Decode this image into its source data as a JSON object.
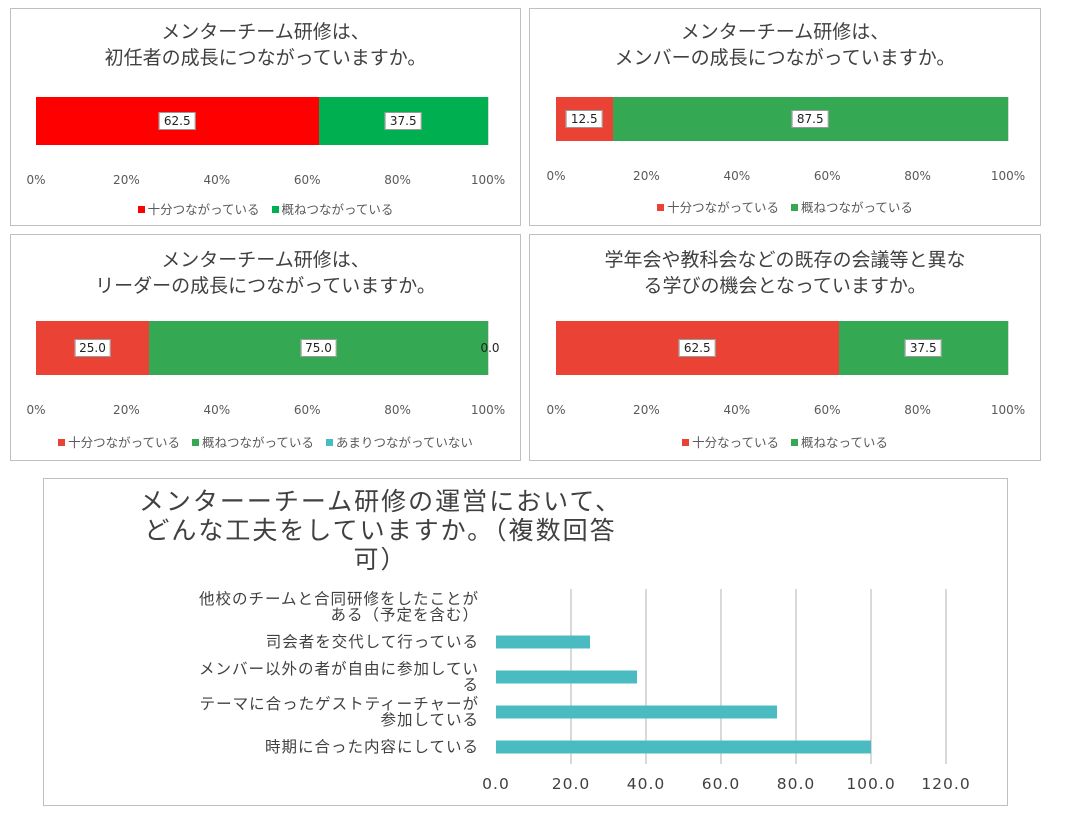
{
  "colors": {
    "red_bright": "#ff0000",
    "green_bright": "#00b050",
    "red": "#ea4335",
    "green": "#34a853",
    "cyan": "#46bdc6",
    "teal_bar": "#4bbbc2"
  },
  "chart_data": [
    {
      "type": "bar",
      "stacked": true,
      "orientation": "horizontal",
      "title": "メンターチーム研修は、\n初任者の成長につながっていますか。",
      "series": [
        {
          "name": "十分つながっている",
          "values": [
            62.5
          ],
          "color": "#ff0000",
          "label": "62.5"
        },
        {
          "name": "概ねつながっている",
          "values": [
            37.5
          ],
          "color": "#00b050",
          "label": "37.5"
        }
      ],
      "xlim": [
        0,
        100
      ],
      "xticks": [
        "0%",
        "20%",
        "40%",
        "60%",
        "80%",
        "100%"
      ],
      "legend": "bottom"
    },
    {
      "type": "bar",
      "stacked": true,
      "orientation": "horizontal",
      "title": "メンターチーム研修は、\nメンバーの成長につながっていますか。",
      "series": [
        {
          "name": "十分つながっている",
          "values": [
            12.5
          ],
          "color": "#ea4335",
          "label": "12.5"
        },
        {
          "name": "概ねつながっている",
          "values": [
            87.5
          ],
          "color": "#34a853",
          "label": "87.5"
        }
      ],
      "xlim": [
        0,
        100
      ],
      "xticks": [
        "0%",
        "20%",
        "40%",
        "60%",
        "80%",
        "100%"
      ],
      "legend": "bottom"
    },
    {
      "type": "bar",
      "stacked": true,
      "orientation": "horizontal",
      "title": "メンターチーム研修は、\nリーダーの成長につながっていますか。",
      "series": [
        {
          "name": "十分つながっている",
          "values": [
            25.0
          ],
          "color": "#ea4335",
          "label": "25.0"
        },
        {
          "name": "概ねつながっている",
          "values": [
            75.0
          ],
          "color": "#34a853",
          "label": "75.0"
        },
        {
          "name": "あまりつながっていない",
          "values": [
            0.0
          ],
          "color": "#46bdc6",
          "label": "0.0"
        }
      ],
      "xlim": [
        0,
        100
      ],
      "xticks": [
        "0%",
        "20%",
        "40%",
        "60%",
        "80%",
        "100%"
      ],
      "legend": "bottom"
    },
    {
      "type": "bar",
      "stacked": true,
      "orientation": "horizontal",
      "title": "学年会や教科会などの既存の会議等と異な\nる学びの機会となっていますか。",
      "series": [
        {
          "name": "十分なっている",
          "values": [
            62.5
          ],
          "color": "#ea4335",
          "label": "62.5"
        },
        {
          "name": "概ねなっている",
          "values": [
            37.5
          ],
          "color": "#34a853",
          "label": "37.5"
        }
      ],
      "xlim": [
        0,
        100
      ],
      "xticks": [
        "0%",
        "20%",
        "40%",
        "60%",
        "80%",
        "100%"
      ],
      "legend": "bottom"
    },
    {
      "type": "bar",
      "orientation": "horizontal",
      "title": "メンターーチーム研修の運営において、\nどんな工夫をしていますか。（複数回答\n可）",
      "categories": [
        "他校のチームと合同研修をしたことが\nある（予定を含む）",
        "司会者を交代して行っている",
        "メンバー以外の者が自由に参加してい\nる",
        "テーマに合ったゲストティーチャーが\n参加している",
        "時期に合った内容にしている"
      ],
      "values": [
        0,
        25.0,
        37.5,
        75.0,
        100.0
      ],
      "xlim": [
        0,
        120
      ],
      "xticks": [
        "0.0",
        "20.0",
        "40.0",
        "60.0",
        "80.0",
        "100.0",
        "120.0"
      ],
      "color": "#4bbbc2",
      "legend": "none"
    }
  ]
}
